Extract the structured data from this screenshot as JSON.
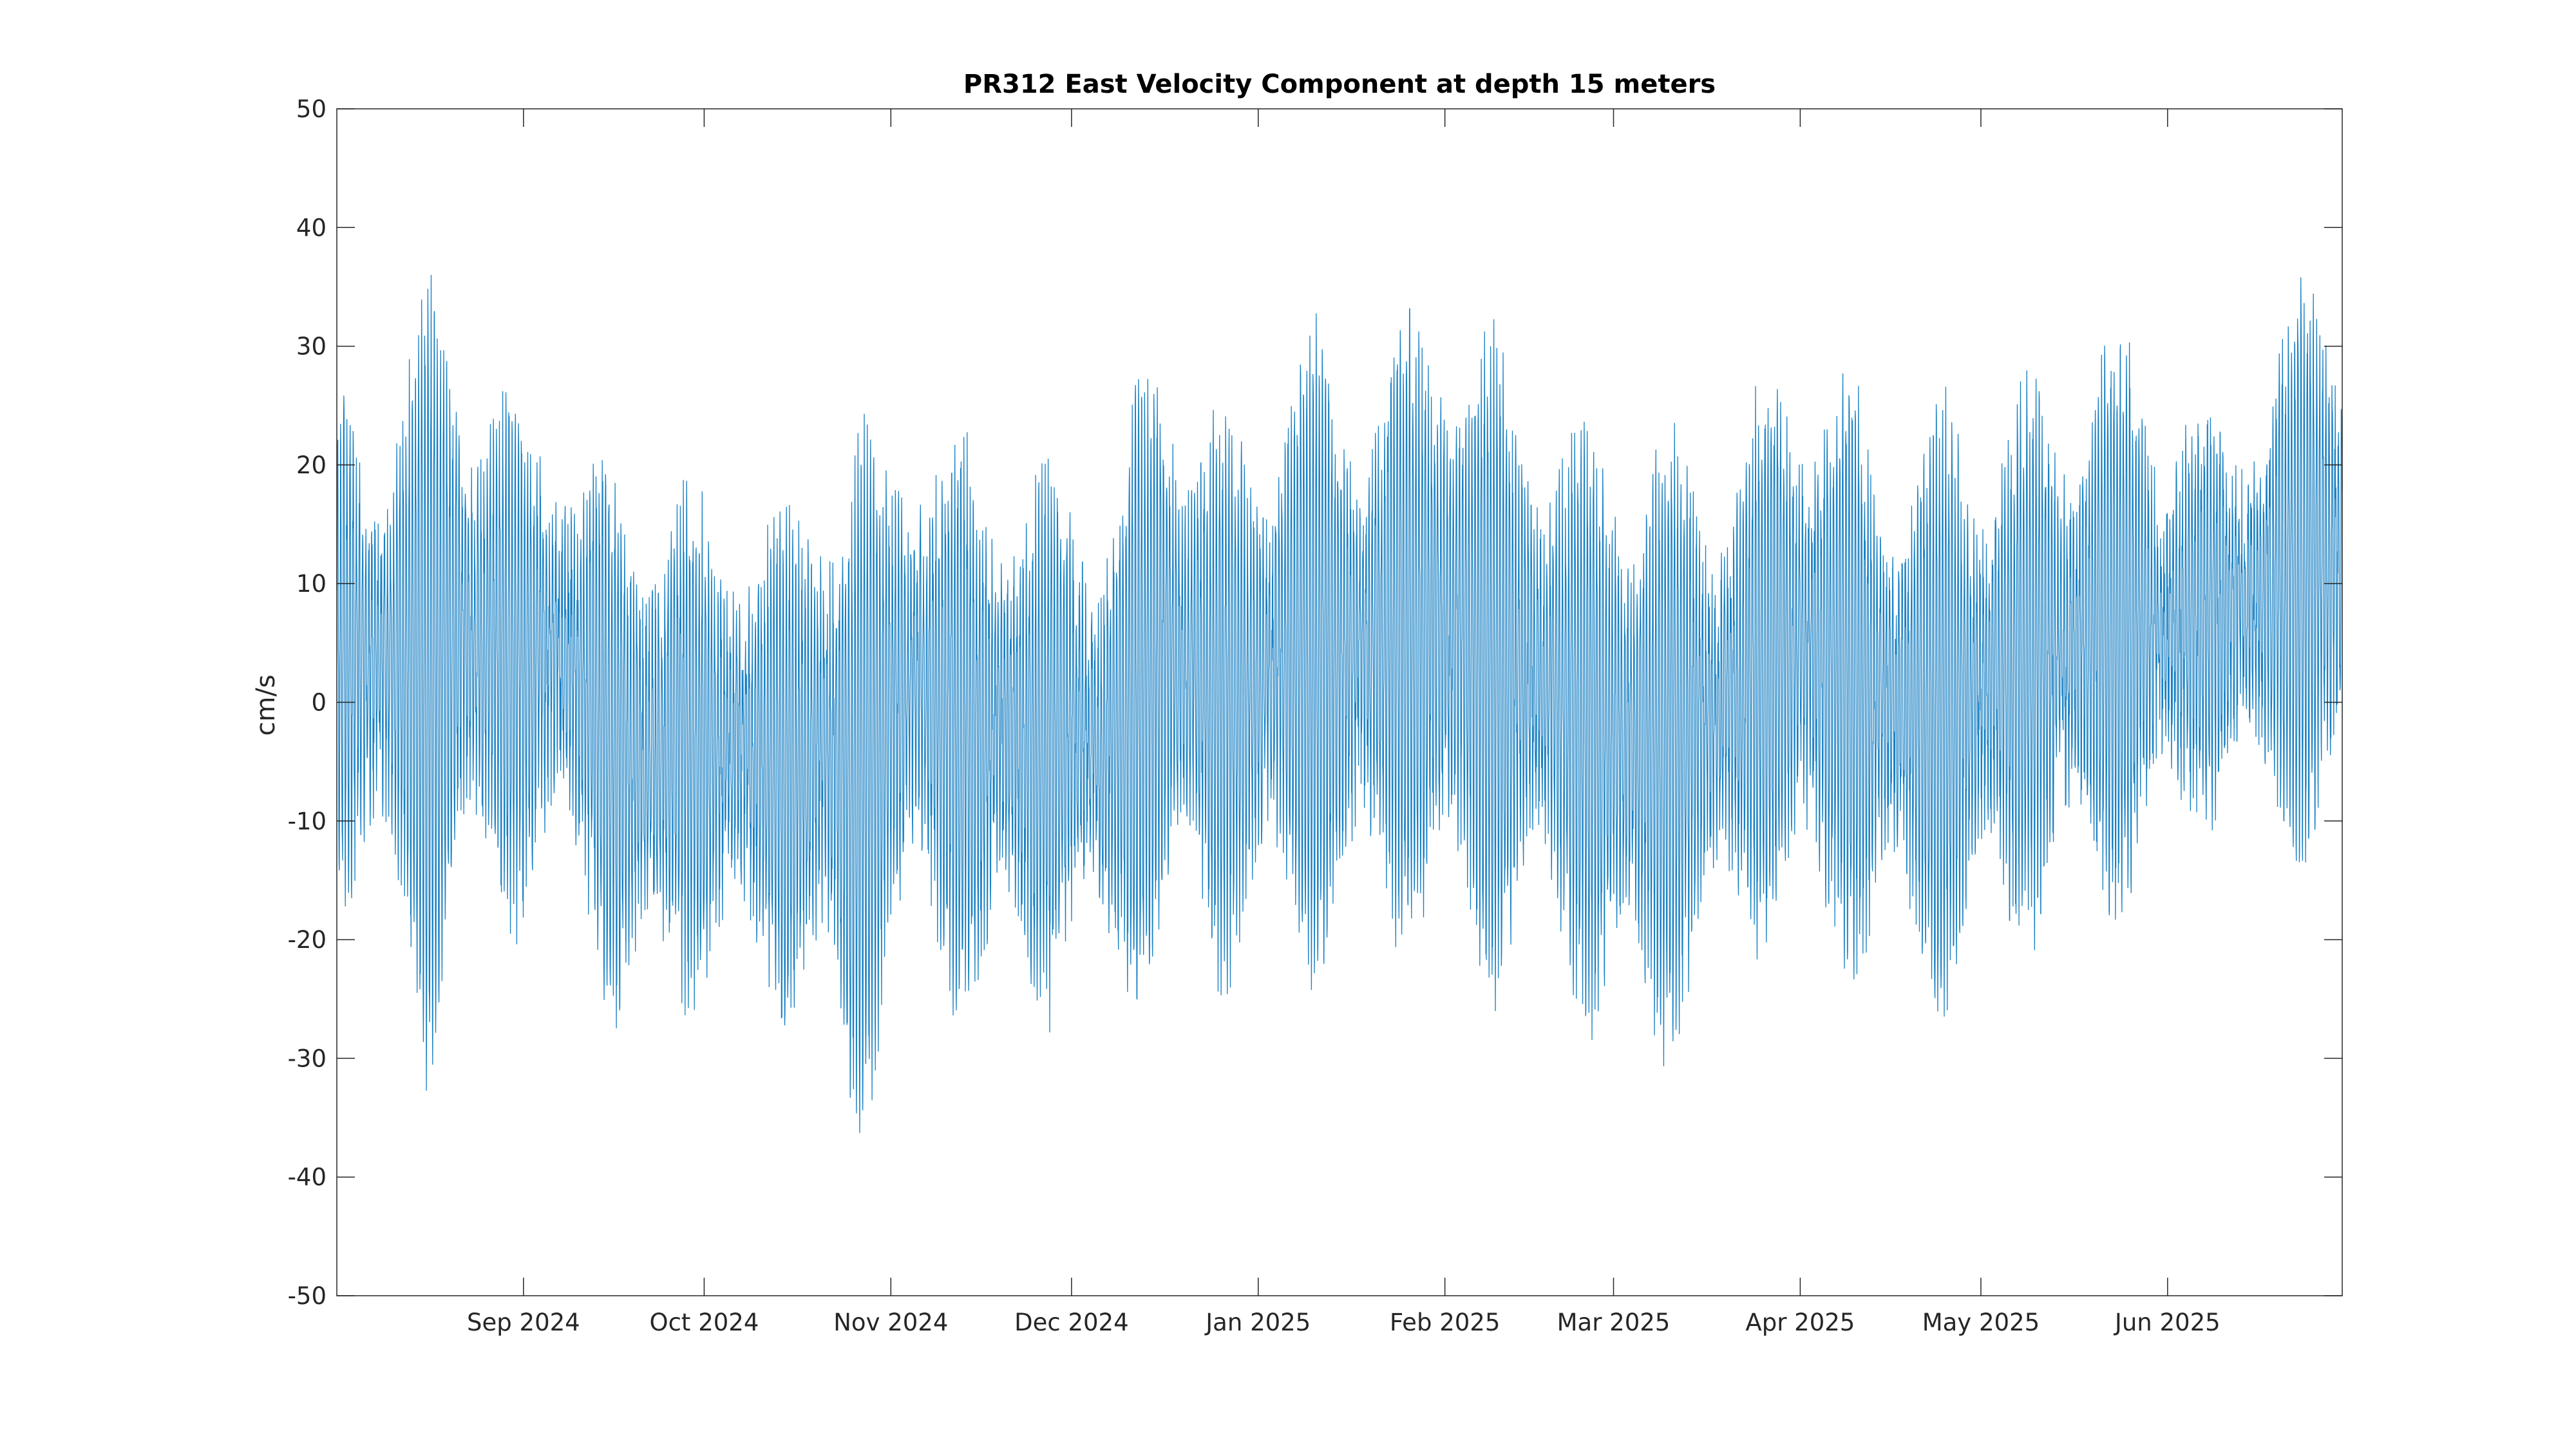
{
  "chart_data": {
    "type": "line",
    "title": "PR312 East Velocity Component at depth 15 meters",
    "xlabel": "",
    "ylabel": "cm/s",
    "xlim": [
      "2024-08-01",
      "2025-06-30"
    ],
    "ylim": [
      -50,
      50
    ],
    "y_ticks": [
      50,
      40,
      30,
      20,
      10,
      0,
      -10,
      -20,
      -30,
      -40,
      -50
    ],
    "y_tick_labels": [
      "50",
      "40",
      "30",
      "20",
      "10",
      "0",
      "-10",
      "-20",
      "-30",
      "-40",
      "-50"
    ],
    "x_ticks": [
      {
        "date": "2024-09-01",
        "label": "Sep 2024"
      },
      {
        "date": "2024-10-01",
        "label": "Oct 2024"
      },
      {
        "date": "2024-11-01",
        "label": "Nov 2024"
      },
      {
        "date": "2024-12-01",
        "label": "Dec 2024"
      },
      {
        "date": "2025-01-01",
        "label": "Jan 2025"
      },
      {
        "date": "2025-02-01",
        "label": "Feb 2025"
      },
      {
        "date": "2025-03-01",
        "label": "Mar 2025"
      },
      {
        "date": "2025-04-01",
        "label": "Apr 2025"
      },
      {
        "date": "2025-05-01",
        "label": "May 2025"
      },
      {
        "date": "2025-06-01",
        "label": "Jun 2025"
      }
    ],
    "grid": false,
    "legend": "none",
    "line_color": "#0072BD",
    "series": [
      {
        "sampling": "semidiurnal tidal oscillation; envelope values (cm/s) sampled about every 5 days",
        "envelope": [
          {
            "x": "2024-08-01",
            "mean": 5,
            "amp": 18
          },
          {
            "x": "2024-08-06",
            "mean": 3,
            "amp": 20
          },
          {
            "x": "2024-08-11",
            "mean": 4,
            "amp": 24
          },
          {
            "x": "2024-08-16",
            "mean": 2,
            "amp": 30
          },
          {
            "x": "2024-08-21",
            "mean": 6,
            "amp": 27
          },
          {
            "x": "2024-08-26",
            "mean": 4,
            "amp": 22
          },
          {
            "x": "2024-09-01",
            "mean": 3,
            "amp": 19
          },
          {
            "x": "2024-09-06",
            "mean": 5,
            "amp": 18
          },
          {
            "x": "2024-09-11",
            "mean": 2,
            "amp": 16
          },
          {
            "x": "2024-09-16",
            "mean": -4,
            "amp": 22
          },
          {
            "x": "2024-09-21",
            "mean": -5,
            "amp": 24
          },
          {
            "x": "2024-09-26",
            "mean": -3,
            "amp": 20
          },
          {
            "x": "2024-10-01",
            "mean": -4,
            "amp": 18
          },
          {
            "x": "2024-10-06",
            "mean": -3,
            "amp": 17
          },
          {
            "x": "2024-10-11",
            "mean": -5,
            "amp": 18
          },
          {
            "x": "2024-10-16",
            "mean": -6,
            "amp": 19
          },
          {
            "x": "2024-10-21",
            "mean": -3,
            "amp": 26
          },
          {
            "x": "2024-10-26",
            "mean": -8,
            "amp": 30
          },
          {
            "x": "2024-10-31",
            "mean": -2,
            "amp": 20
          },
          {
            "x": "2024-11-05",
            "mean": 2,
            "amp": 24
          },
          {
            "x": "2024-11-10",
            "mean": -1,
            "amp": 20
          },
          {
            "x": "2024-11-15",
            "mean": -3,
            "amp": 22
          },
          {
            "x": "2024-11-20",
            "mean": -2,
            "amp": 23
          },
          {
            "x": "2024-11-25",
            "mean": -4,
            "amp": 21
          },
          {
            "x": "2024-12-01",
            "mean": -2,
            "amp": 18
          },
          {
            "x": "2024-12-06",
            "mean": -3,
            "amp": 20
          },
          {
            "x": "2024-12-11",
            "mean": -1,
            "amp": 22
          },
          {
            "x": "2024-12-16",
            "mean": 5,
            "amp": 28
          },
          {
            "x": "2024-12-21",
            "mean": 3,
            "amp": 22
          },
          {
            "x": "2024-12-26",
            "mean": 0,
            "amp": 21
          },
          {
            "x": "2025-01-01",
            "mean": 2,
            "amp": 20
          },
          {
            "x": "2025-01-06",
            "mean": 4,
            "amp": 27
          },
          {
            "x": "2025-01-11",
            "mean": 3,
            "amp": 25
          },
          {
            "x": "2025-01-16",
            "mean": 4,
            "amp": 24
          },
          {
            "x": "2025-01-21",
            "mean": 5,
            "amp": 22
          },
          {
            "x": "2025-01-26",
            "mean": 6,
            "amp": 24
          },
          {
            "x": "2025-02-01",
            "mean": 7,
            "amp": 30
          },
          {
            "x": "2025-02-06",
            "mean": 4,
            "amp": 26
          },
          {
            "x": "2025-02-11",
            "mean": 2,
            "amp": 24
          },
          {
            "x": "2025-02-16",
            "mean": 3,
            "amp": 22
          },
          {
            "x": "2025-02-21",
            "mean": 0,
            "amp": 20
          },
          {
            "x": "2025-02-26",
            "mean": -2,
            "amp": 24
          },
          {
            "x": "2025-03-03",
            "mean": -3,
            "amp": 28
          },
          {
            "x": "2025-03-08",
            "mean": -4,
            "amp": 24
          },
          {
            "x": "2025-03-13",
            "mean": -2,
            "amp": 22
          },
          {
            "x": "2025-03-18",
            "mean": -1,
            "amp": 20
          },
          {
            "x": "2025-03-23",
            "mean": 2,
            "amp": 18
          },
          {
            "x": "2025-03-28",
            "mean": 4,
            "amp": 24
          },
          {
            "x": "2025-04-02",
            "mean": 5,
            "amp": 26
          },
          {
            "x": "2025-04-07",
            "mean": 3,
            "amp": 22
          },
          {
            "x": "2025-04-12",
            "mean": 1,
            "amp": 22
          },
          {
            "x": "2025-04-17",
            "mean": 0,
            "amp": 20
          },
          {
            "x": "2025-04-22",
            "mean": -1,
            "amp": 22
          },
          {
            "x": "2025-04-27",
            "mean": 0,
            "amp": 24
          },
          {
            "x": "2025-05-02",
            "mean": 2,
            "amp": 22
          },
          {
            "x": "2025-05-07",
            "mean": 3,
            "amp": 21
          },
          {
            "x": "2025-05-12",
            "mean": 4,
            "amp": 20
          },
          {
            "x": "2025-05-17",
            "mean": 5,
            "amp": 21
          },
          {
            "x": "2025-05-22",
            "mean": 6,
            "amp": 22
          },
          {
            "x": "2025-05-27",
            "mean": 7,
            "amp": 23
          },
          {
            "x": "2025-06-01",
            "mean": 6,
            "amp": 16
          },
          {
            "x": "2025-06-06",
            "mean": 7,
            "amp": 15
          },
          {
            "x": "2025-06-11",
            "mean": 8,
            "amp": 15
          },
          {
            "x": "2025-06-16",
            "mean": 9,
            "amp": 16
          },
          {
            "x": "2025-06-21",
            "mean": 10,
            "amp": 20
          },
          {
            "x": "2025-06-26",
            "mean": 12,
            "amp": 26
          },
          {
            "x": "2025-06-30",
            "mean": 12,
            "amp": 28
          }
        ]
      }
    ]
  }
}
